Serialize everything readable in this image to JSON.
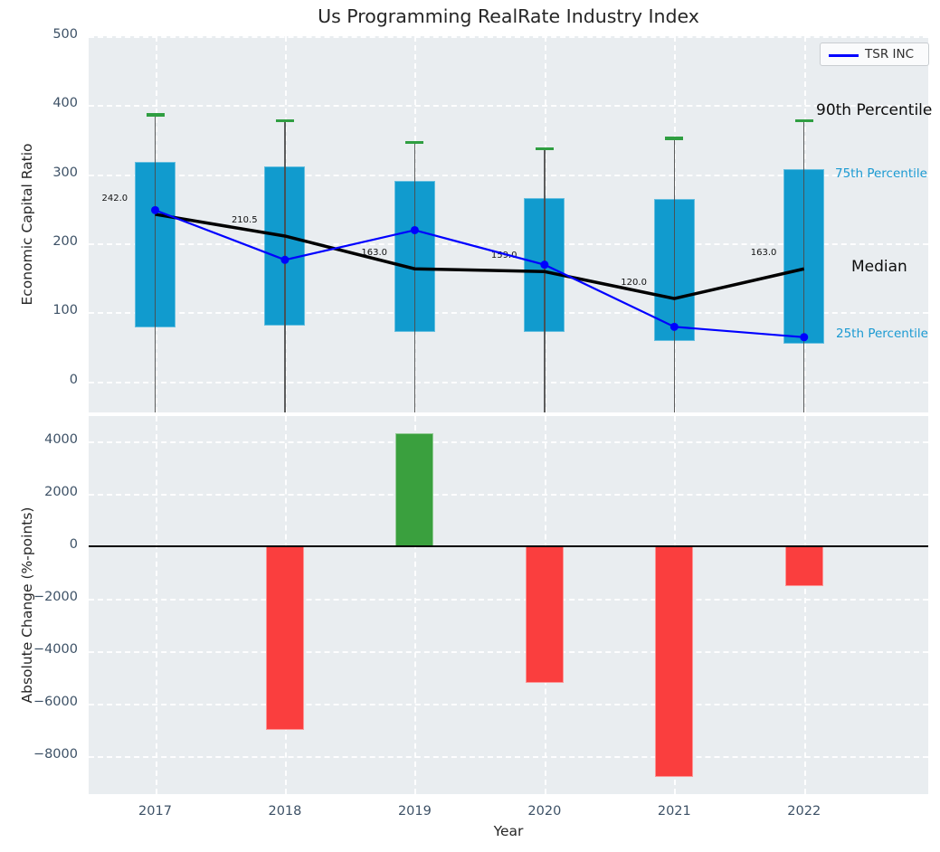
{
  "figure_title": "Us Programming RealRate Industry Index",
  "colors": {
    "axes_background": "#e9edf0",
    "box_fill": "#119bce",
    "cap_green": "#2f9e41",
    "median_black": "#000000",
    "company_line_blue": "#0000ff",
    "bar_positive": "#3aa03e",
    "bar_negative": "#fa3e3e",
    "tick_text": "#3d5166",
    "annotation_cyan": "#1b9ad2"
  },
  "chart_data": [
    {
      "type": "box",
      "title": "Us Programming RealRate Industry Index",
      "ylabel": "Economic Capital Ratio",
      "ylim": [
        -45,
        500
      ],
      "yticks": {
        "values": [
          500,
          400,
          300,
          200,
          100,
          0
        ],
        "labels": [
          "500",
          "400",
          "300",
          "200",
          "100",
          "0"
        ]
      },
      "x": [
        "2017",
        "2018",
        "2019",
        "2020",
        "2021",
        "2022"
      ],
      "grid": true,
      "legend": {
        "label": "TSR INC",
        "position": "upper right"
      },
      "series": [
        {
          "name": "90th Percentile",
          "role": "whisker-cap",
          "color": "#2f9e41",
          "values": [
            386,
            377,
            346,
            337,
            352,
            378
          ]
        },
        {
          "name": "75th Percentile",
          "role": "box-top",
          "color": "#119bce",
          "values": [
            318,
            311,
            290,
            266,
            264,
            308
          ]
        },
        {
          "name": "Median",
          "role": "median-line",
          "color": "#000000",
          "values": [
            242.0,
            210.5,
            163.0,
            159.0,
            120.0,
            163.0
          ],
          "labels": [
            "242.0",
            "210.5",
            "163.0",
            "159.0",
            "120.0",
            "163.0"
          ]
        },
        {
          "name": "25th Percentile",
          "role": "box-bottom",
          "color": "#119bce",
          "values": [
            78,
            81,
            72,
            72,
            59,
            54
          ]
        },
        {
          "name": "TSR INC",
          "role": "company-line",
          "color": "#0000ff",
          "values": [
            248,
            176,
            219,
            169,
            79,
            64
          ]
        }
      ]
    },
    {
      "type": "bar",
      "ylabel": "Absolute Change (%-points)",
      "xlabel": "Year",
      "categories": [
        "2017",
        "2018",
        "2019",
        "2020",
        "2021",
        "2022"
      ],
      "values": [
        null,
        -7000,
        4300,
        -5200,
        -8800,
        -1500
      ],
      "ylim": [
        -9450,
        4970
      ],
      "baseline": 0,
      "grid": true,
      "yticks": {
        "values": [
          4000,
          2000,
          0,
          -2000,
          -4000,
          -6000,
          -8000
        ],
        "labels": [
          "4000",
          "2000",
          "0",
          "−2000",
          "−4000",
          "−6000",
          "−8000"
        ]
      },
      "positive_color": "#3aa03e",
      "negative_color": "#fa3e3e"
    }
  ]
}
